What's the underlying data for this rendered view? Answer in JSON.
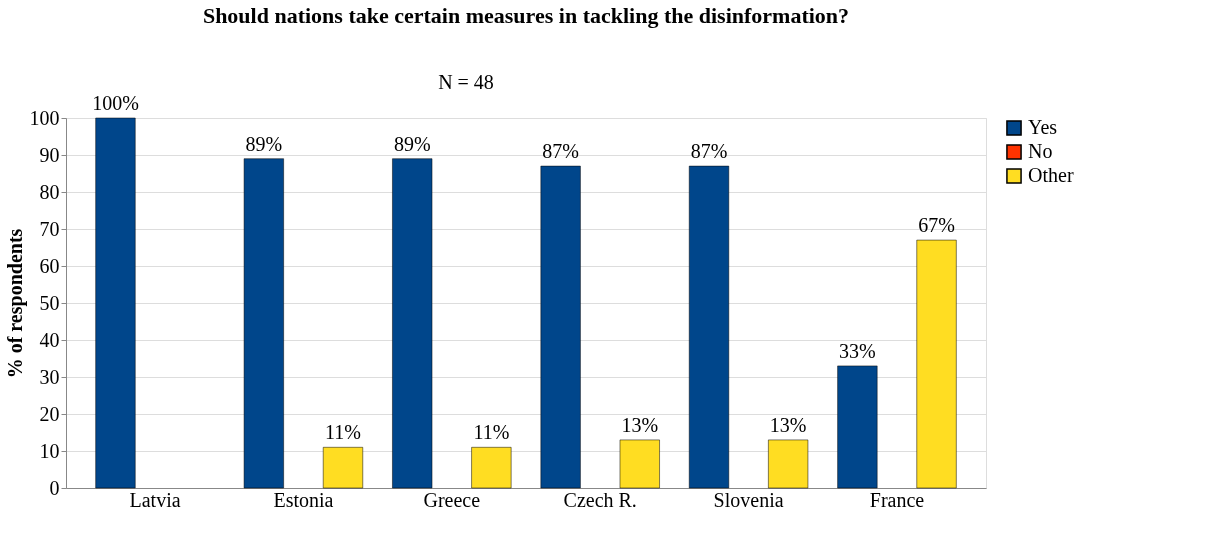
{
  "chart_data": {
    "type": "bar",
    "title": "Should nations take certain measures in tackling the disinformation?",
    "ylabel": "% of respondents",
    "annotations": [
      "N = 48"
    ],
    "categories": [
      "Latvia",
      "Estonia",
      "Greece",
      "Czech R.",
      "Slovenia",
      "France"
    ],
    "series": [
      {
        "name": "Yes",
        "color": "#00468b",
        "values": [
          100,
          89,
          89,
          87,
          87,
          33
        ],
        "value_labels": [
          "100%",
          "89%",
          "89%",
          "87%",
          "87%",
          "33%"
        ]
      },
      {
        "name": "No",
        "color": "#ff3300",
        "values": [
          null,
          null,
          null,
          null,
          null,
          null
        ]
      },
      {
        "name": "Other",
        "color": "#ffdd22",
        "values": [
          null,
          11,
          11,
          13,
          13,
          67
        ],
        "value_labels": [
          null,
          "11%",
          "11%",
          "13%",
          "13%",
          "67%"
        ]
      }
    ],
    "ylim": [
      0,
      100
    ],
    "yticks": [
      0,
      10,
      20,
      30,
      40,
      50,
      60,
      70,
      80,
      90,
      100
    ],
    "grid": "y",
    "legend": "right"
  }
}
